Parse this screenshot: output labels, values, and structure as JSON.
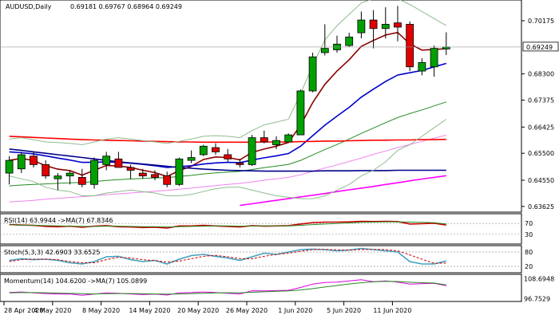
{
  "chart_data": {
    "type": "candlestick",
    "symbol": "AUDUSD,Daily",
    "ohlc_text": "0.69181 0.69767 0.68964 0.69249",
    "last_price_label": "0.69249",
    "price_axis": {
      "ylim": [
        0.6348,
        0.7085
      ],
      "ticks": [
        "0.70175",
        "0.69249",
        "0.68300",
        "0.67375",
        "0.66425",
        "0.65500",
        "0.64550",
        "0.63625"
      ]
    },
    "dates": [
      "28 Apr 2020",
      "4 May 2020",
      "8 May 2020",
      "14 May 2020",
      "20 May 2020",
      "26 May 2020",
      "1 Jun 2020",
      "5 Jun 2020",
      "11 Jun 2020"
    ],
    "candles": [
      {
        "o": 0.648,
        "h": 0.654,
        "l": 0.644,
        "c": 0.6525
      },
      {
        "o": 0.6495,
        "h": 0.6555,
        "l": 0.648,
        "c": 0.6545
      },
      {
        "o": 0.654,
        "h": 0.6555,
        "l": 0.65,
        "c": 0.651
      },
      {
        "o": 0.651,
        "h": 0.6525,
        "l": 0.646,
        "c": 0.647
      },
      {
        "o": 0.646,
        "h": 0.648,
        "l": 0.642,
        "c": 0.647
      },
      {
        "o": 0.647,
        "h": 0.649,
        "l": 0.644,
        "c": 0.648
      },
      {
        "o": 0.6465,
        "h": 0.6495,
        "l": 0.643,
        "c": 0.644
      },
      {
        "o": 0.644,
        "h": 0.6535,
        "l": 0.6425,
        "c": 0.6525
      },
      {
        "o": 0.651,
        "h": 0.6555,
        "l": 0.649,
        "c": 0.654
      },
      {
        "o": 0.653,
        "h": 0.6555,
        "l": 0.65,
        "c": 0.65
      },
      {
        "o": 0.65,
        "h": 0.651,
        "l": 0.646,
        "c": 0.649
      },
      {
        "o": 0.648,
        "h": 0.6495,
        "l": 0.646,
        "c": 0.647
      },
      {
        "o": 0.6475,
        "h": 0.649,
        "l": 0.6455,
        "c": 0.6465
      },
      {
        "o": 0.647,
        "h": 0.6485,
        "l": 0.643,
        "c": 0.644
      },
      {
        "o": 0.644,
        "h": 0.6535,
        "l": 0.6435,
        "c": 0.653
      },
      {
        "o": 0.6525,
        "h": 0.656,
        "l": 0.6515,
        "c": 0.6535
      },
      {
        "o": 0.6545,
        "h": 0.658,
        "l": 0.654,
        "c": 0.6575
      },
      {
        "o": 0.657,
        "h": 0.6585,
        "l": 0.6545,
        "c": 0.6555
      },
      {
        "o": 0.6545,
        "h": 0.6565,
        "l": 0.652,
        "c": 0.653
      },
      {
        "o": 0.6515,
        "h": 0.653,
        "l": 0.65,
        "c": 0.651
      },
      {
        "o": 0.651,
        "h": 0.6615,
        "l": 0.6505,
        "c": 0.6605
      },
      {
        "o": 0.6605,
        "h": 0.663,
        "l": 0.6585,
        "c": 0.659
      },
      {
        "o": 0.658,
        "h": 0.661,
        "l": 0.6565,
        "c": 0.6595
      },
      {
        "o": 0.659,
        "h": 0.662,
        "l": 0.659,
        "c": 0.6615
      },
      {
        "o": 0.6615,
        "h": 0.6775,
        "l": 0.6615,
        "c": 0.677
      },
      {
        "o": 0.677,
        "h": 0.6905,
        "l": 0.6765,
        "c": 0.689
      },
      {
        "o": 0.6905,
        "h": 0.7005,
        "l": 0.6895,
        "c": 0.692
      },
      {
        "o": 0.6915,
        "h": 0.6965,
        "l": 0.6905,
        "c": 0.6935
      },
      {
        "o": 0.693,
        "h": 0.6975,
        "l": 0.6925,
        "c": 0.696
      },
      {
        "o": 0.6975,
        "h": 0.705,
        "l": 0.6955,
        "c": 0.702
      },
      {
        "o": 0.702,
        "h": 0.7055,
        "l": 0.692,
        "c": 0.699
      },
      {
        "o": 0.699,
        "h": 0.7065,
        "l": 0.6955,
        "c": 0.7005
      },
      {
        "o": 0.701,
        "h": 0.707,
        "l": 0.6945,
        "c": 0.6995
      },
      {
        "o": 0.7005,
        "h": 0.7015,
        "l": 0.684,
        "c": 0.6855
      },
      {
        "o": 0.684,
        "h": 0.6885,
        "l": 0.6825,
        "c": 0.687
      },
      {
        "o": 0.6855,
        "h": 0.693,
        "l": 0.682,
        "c": 0.692
      },
      {
        "o": 0.69181,
        "h": 0.69767,
        "l": 0.68964,
        "c": 0.69249
      }
    ],
    "overlays": [
      {
        "color": "#8b0000",
        "values": [
          0.6525,
          0.6532,
          0.6524,
          0.6506,
          0.6494,
          0.6489,
          0.6473,
          0.649,
          0.6507,
          0.6505,
          0.65,
          0.649,
          0.6482,
          0.6468,
          0.6489,
          0.6504,
          0.6528,
          0.6537,
          0.6535,
          0.6527,
          0.6553,
          0.6565,
          0.6575,
          0.6588,
          0.6649,
          0.6729,
          0.6793,
          0.684,
          0.688,
          0.6927,
          0.6948,
          0.6967,
          0.6976,
          0.6936,
          0.6914,
          0.6916,
          0.6919
        ]
      },
      {
        "color": "#0000cc",
        "values": [
          0.6555,
          0.6552,
          0.6548,
          0.6541,
          0.6533,
          0.6526,
          0.6518,
          0.6518,
          0.652,
          0.6518,
          0.6515,
          0.6511,
          0.6506,
          0.65,
          0.6503,
          0.6506,
          0.6512,
          0.6516,
          0.6518,
          0.6517,
          0.6526,
          0.6534,
          0.6541,
          0.6549,
          0.6575,
          0.6612,
          0.6649,
          0.6681,
          0.6712,
          0.6748,
          0.6776,
          0.6803,
          0.6826,
          0.6834,
          0.6842,
          0.6855,
          0.6867
        ]
      },
      {
        "color": "#228b22",
        "values": [
          0.6435,
          0.6438,
          0.644,
          0.6442,
          0.6444,
          0.6446,
          0.6447,
          0.645,
          0.6454,
          0.6457,
          0.6459,
          0.6461,
          0.6463,
          0.6464,
          0.6468,
          0.6472,
          0.6477,
          0.6481,
          0.6484,
          0.6486,
          0.6493,
          0.6499,
          0.6505,
          0.6511,
          0.6525,
          0.6544,
          0.6563,
          0.6581,
          0.66,
          0.662,
          0.6639,
          0.6658,
          0.6676,
          0.669,
          0.6703,
          0.6717,
          0.6731
        ]
      },
      {
        "color": "#ee82ee",
        "values": [
          0.6378,
          0.6381,
          0.6384,
          0.6388,
          0.6391,
          0.6394,
          0.6397,
          0.64,
          0.6404,
          0.6407,
          0.641,
          0.6413,
          0.6416,
          0.6419,
          0.6423,
          0.6427,
          0.6432,
          0.6436,
          0.644,
          0.6444,
          0.6449,
          0.6455,
          0.646,
          0.6465,
          0.6474,
          0.6486,
          0.6498,
          0.6509,
          0.6521,
          0.6533,
          0.6546,
          0.6558,
          0.657,
          0.6581,
          0.6592,
          0.6603,
          0.6614
        ]
      },
      {
        "color": "#ff0000",
        "values": [
          0.661,
          0.6608,
          0.6606,
          0.6604,
          0.6602,
          0.66,
          0.6598,
          0.6597,
          0.6596,
          0.6595,
          0.6594,
          0.6593,
          0.6592,
          0.6591,
          0.659,
          0.659,
          0.6589,
          0.6589,
          0.6589,
          0.6589,
          0.6589,
          0.659,
          0.659,
          0.659,
          0.6591,
          0.6592,
          0.6593,
          0.6593,
          0.6594,
          0.6595,
          0.6596,
          0.6596,
          0.6597,
          0.6597,
          0.6598,
          0.6598,
          0.6599
        ]
      },
      {
        "color": "#00008b",
        "values": [
          0.6565,
          0.656,
          0.6555,
          0.655,
          0.6545,
          0.654,
          0.6535,
          0.653,
          0.6525,
          0.652,
          0.6516,
          0.6512,
          0.6508,
          0.6504,
          0.65,
          0.6497,
          0.6494,
          0.6492,
          0.649,
          0.6489,
          0.6488,
          0.6487,
          0.6487,
          0.6487,
          0.6487,
          0.6487,
          0.6488,
          0.6488,
          0.6488,
          0.6489,
          0.6489,
          0.6489,
          0.649,
          0.649,
          0.649,
          0.649,
          0.649
        ]
      },
      {
        "color": "#ff00ff",
        "values": [
          null,
          null,
          null,
          null,
          null,
          null,
          null,
          null,
          null,
          null,
          null,
          null,
          null,
          null,
          null,
          null,
          null,
          null,
          null,
          0.6366,
          0.6372,
          0.6378,
          0.6384,
          0.639,
          0.6396,
          0.6402,
          0.6408,
          0.6415,
          0.6421,
          0.6427,
          0.6433,
          0.644,
          0.6446,
          0.6453,
          0.6459,
          0.6465,
          0.6471
        ]
      },
      {
        "color": "#8fbc8f",
        "values": [
          0.66,
          0.6605,
          0.6598,
          0.659,
          0.6588,
          0.6585,
          0.658,
          0.659,
          0.66,
          0.6605,
          0.66,
          0.6595,
          0.659,
          0.6585,
          0.6592,
          0.66,
          0.661,
          0.6612,
          0.661,
          0.6605,
          0.663,
          0.665,
          0.666,
          0.667,
          0.676,
          0.686,
          0.695,
          0.7,
          0.704,
          0.708,
          0.7095,
          0.71,
          0.7095,
          0.7075,
          0.705,
          0.7025,
          0.7
        ]
      },
      {
        "color": "#8fbc8f",
        "values": [
          0.647,
          0.646,
          0.645,
          0.643,
          0.642,
          0.6415,
          0.64,
          0.64,
          0.641,
          0.6415,
          0.642,
          0.6415,
          0.641,
          0.64,
          0.64,
          0.6405,
          0.6415,
          0.6425,
          0.643,
          0.643,
          0.642,
          0.641,
          0.64,
          0.6395,
          0.639,
          0.639,
          0.64,
          0.642,
          0.644,
          0.647,
          0.649,
          0.652,
          0.656,
          0.658,
          0.661,
          0.664,
          0.667
        ]
      }
    ],
    "rsi": {
      "header": "RSI(14) 63.9944 ->MA(7) 67.8346",
      "levels": [
        "70",
        "30"
      ],
      "ylim": [
        0,
        100
      ],
      "values": [
        66,
        64,
        63,
        59,
        58,
        60,
        56,
        60,
        62,
        58,
        57,
        55,
        56,
        53,
        61,
        61,
        63,
        61,
        59,
        57,
        62,
        60,
        61,
        62,
        68,
        73,
        75,
        75,
        76,
        78,
        77,
        78,
        77,
        68,
        69,
        71,
        64
      ],
      "ma": [
        65,
        64,
        63,
        62,
        61,
        60,
        59,
        59,
        60,
        60,
        59,
        58,
        58,
        57,
        58,
        59,
        60,
        61,
        61,
        60,
        61,
        61,
        61,
        61,
        63,
        66,
        68,
        70,
        72,
        74,
        75,
        76,
        76,
        75,
        74,
        73,
        67.8
      ]
    },
    "stoch": {
      "header": "Stoch(5,3,3) 42.6903 33.6525",
      "levels": [
        "80",
        "20"
      ],
      "ylim": [
        0,
        100
      ],
      "values": [
        45,
        52,
        48,
        50,
        45,
        35,
        30,
        40,
        60,
        62,
        48,
        40,
        45,
        30,
        50,
        65,
        70,
        62,
        55,
        45,
        60,
        75,
        70,
        80,
        90,
        92,
        90,
        85,
        88,
        95,
        90,
        85,
        80,
        40,
        30,
        30,
        42.7
      ],
      "signal": [
        40,
        48,
        50,
        50,
        48,
        40,
        35,
        35,
        48,
        58,
        55,
        48,
        44,
        38,
        42,
        52,
        62,
        66,
        60,
        52,
        52,
        62,
        70,
        75,
        83,
        90,
        91,
        89,
        88,
        90,
        91,
        90,
        85,
        68,
        50,
        33,
        33.7
      ]
    },
    "momentum": {
      "header": "Momentum(14) 104.6200 ->MA(7) 105.0899",
      "tick_labels": [
        "108.6948",
        "96.7529"
      ],
      "ylim": [
        96.0,
        110.5
      ],
      "values": [
        100.5,
        100.8,
        100.2,
        99.8,
        99.5,
        99.6,
        98.8,
        99.5,
        100.2,
        100.0,
        99.6,
        99.2,
        99.5,
        98.9,
        100.2,
        100.4,
        100.8,
        100.5,
        100.0,
        99.6,
        101.5,
        101.4,
        101.6,
        101.8,
        103.5,
        105.5,
        106.5,
        106.8,
        107.5,
        108.2,
        107.0,
        107.5,
        106.8,
        105.5,
        105.8,
        106.0,
        104.62
      ],
      "ma": [
        100.2,
        100.4,
        100.4,
        100.3,
        100.1,
        99.9,
        99.7,
        99.6,
        99.7,
        99.8,
        99.8,
        99.7,
        99.6,
        99.5,
        99.6,
        99.8,
        100.0,
        100.2,
        100.3,
        100.3,
        100.6,
        100.9,
        101.2,
        101.4,
        102.0,
        102.8,
        103.8,
        104.7,
        105.6,
        106.4,
        106.9,
        107.2,
        107.1,
        106.7,
        106.4,
        106.2,
        105.09
      ]
    }
  }
}
